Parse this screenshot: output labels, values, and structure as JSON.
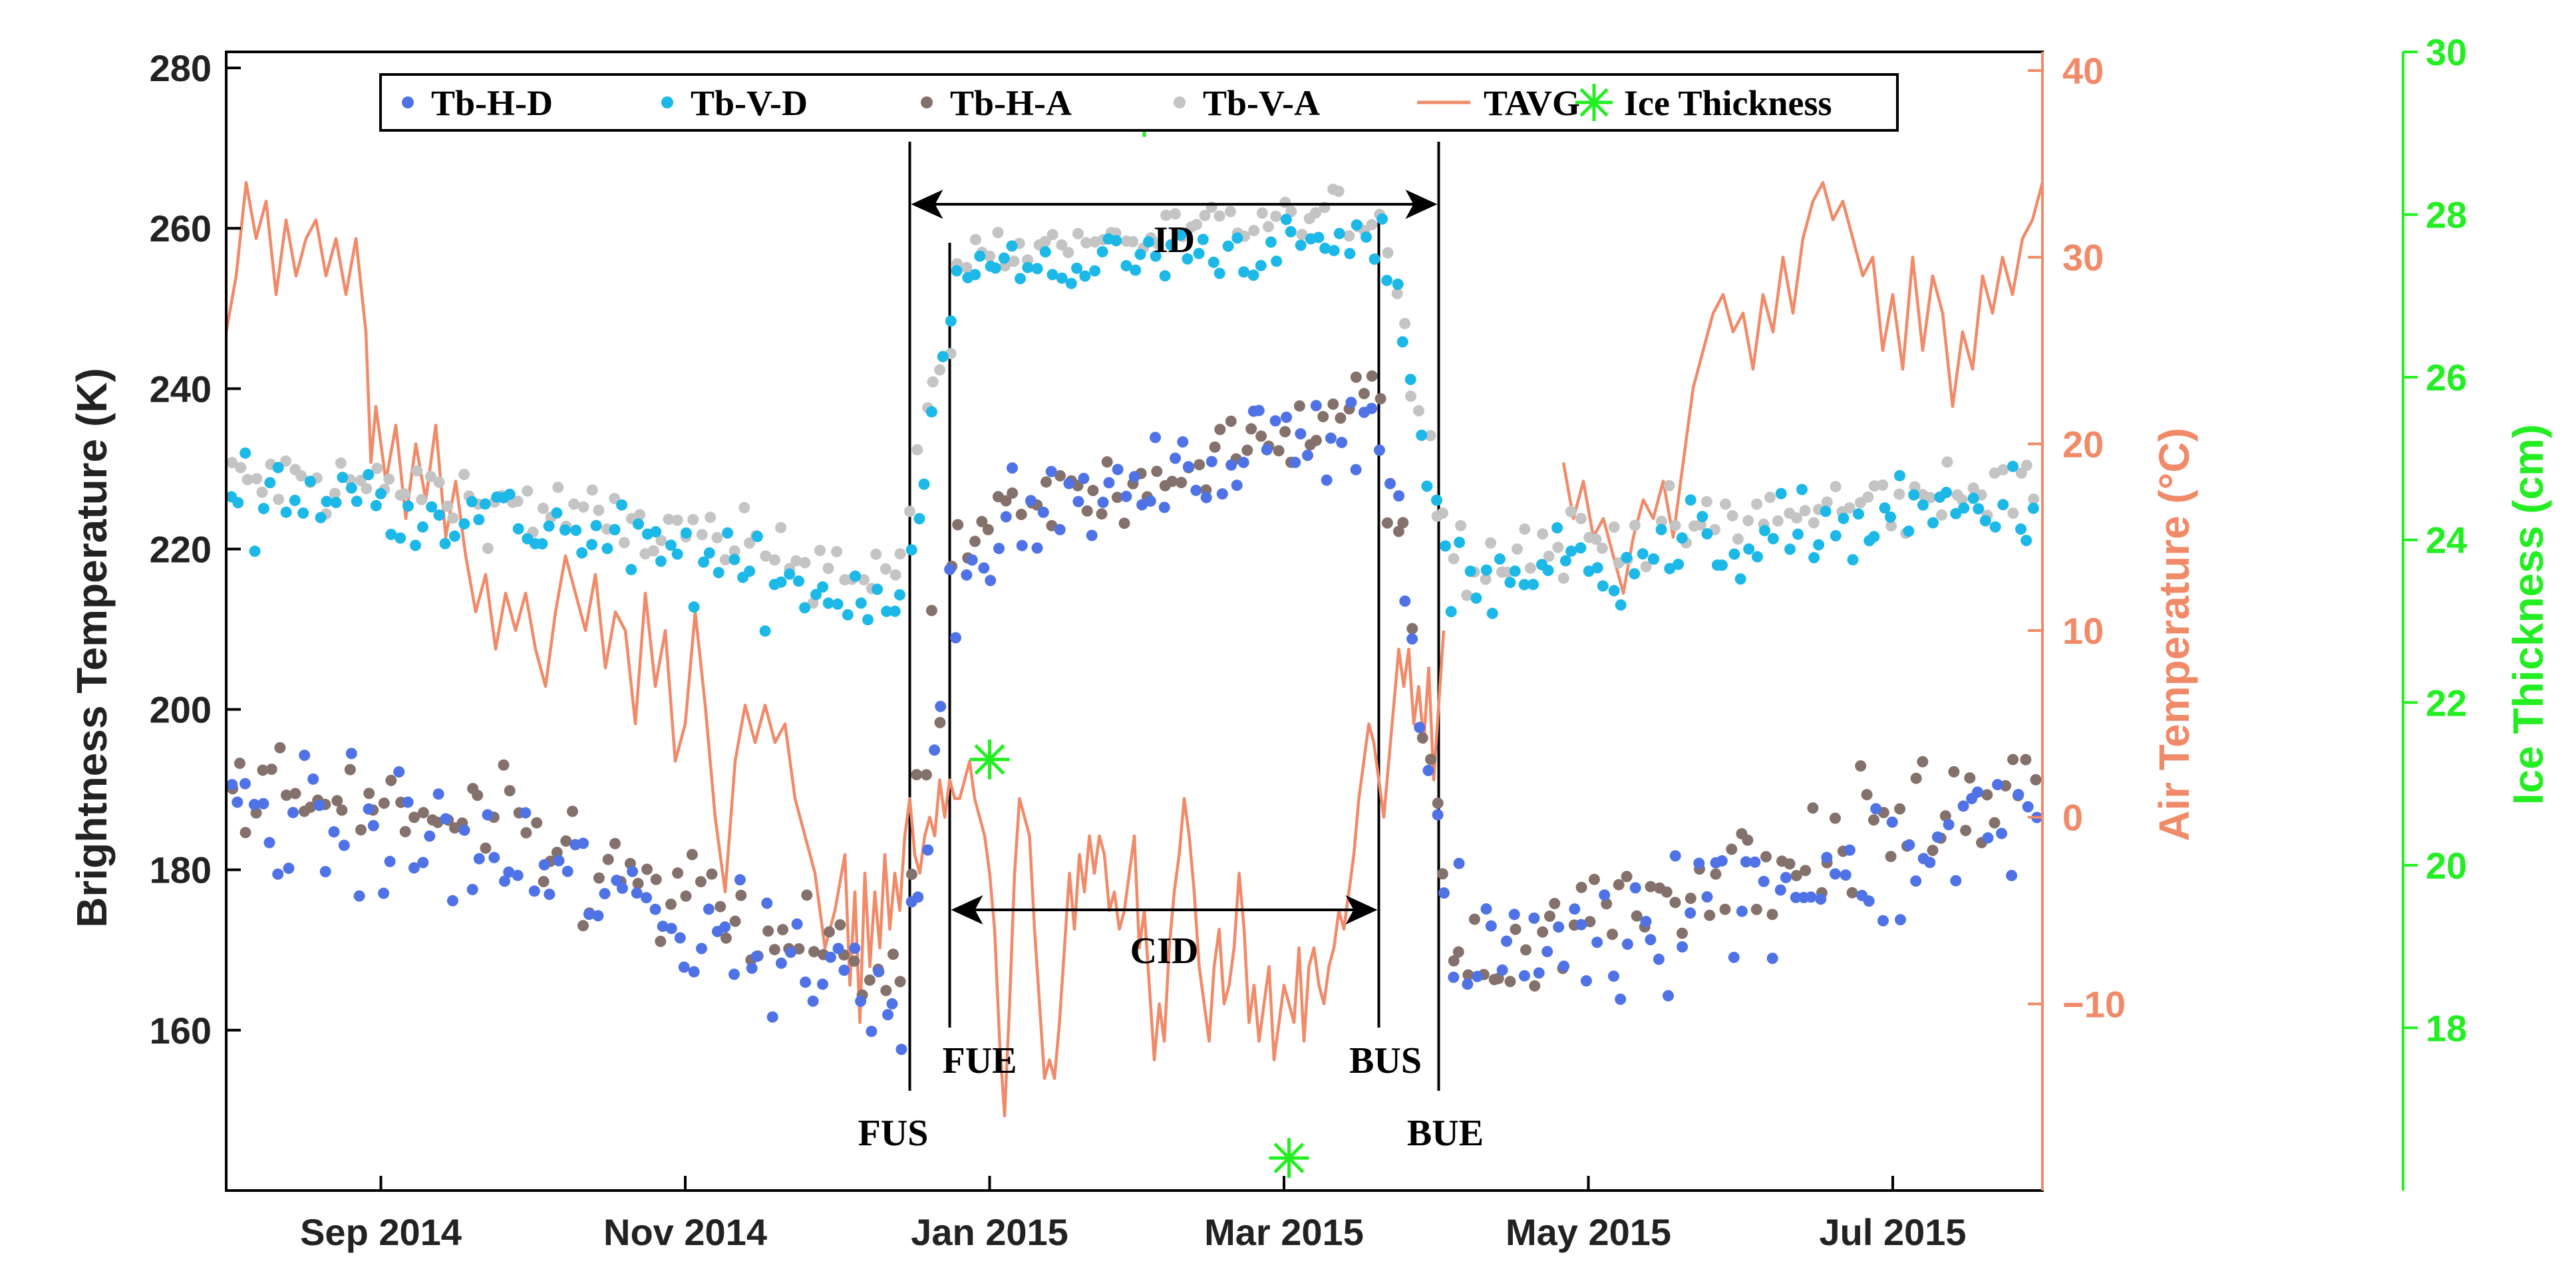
{
  "chart_data": {
    "type": "scatter",
    "colors": {
      "tb_h_d": "#4F73E6",
      "tb_v_d": "#1CB8E8",
      "tb_h_a": "#85716B",
      "tb_v_a": "#C4C4C4",
      "tavg": "#F08A68",
      "ice": "#22EE22",
      "axis": "#000000",
      "air_axis": "#F08A68",
      "ice_axis": "#22EE22"
    },
    "axes": {
      "left": {
        "label": "Brightness Temperature (K)",
        "ylim": [
          140,
          282
        ],
        "ticks": [
          160,
          180,
          200,
          220,
          240,
          260,
          280
        ]
      },
      "right_air": {
        "label": "Air Temperature (°C)",
        "ylim": [
          -20,
          41
        ],
        "ticks": [
          -10,
          0,
          10,
          20,
          30,
          40
        ],
        "tick_labels": [
          "−10",
          "0",
          "10",
          "20",
          "30",
          "40"
        ]
      },
      "right_ice": {
        "label": "Ice Thickness (cm)",
        "ylim": [
          16,
          30
        ],
        "ticks": [
          18,
          20,
          22,
          24,
          26,
          28,
          30
        ]
      },
      "x": {
        "xlim": [
          0,
          364
        ],
        "ticks": [
          31,
          92,
          153,
          212,
          273,
          334
        ],
        "tick_labels": [
          "Sep 2014",
          "Nov 2014",
          "Jan 2015",
          "Mar 2015",
          "May 2015",
          "Jul 2015"
        ]
      }
    },
    "legend": [
      "Tb-H-D",
      "Tb-V-D",
      "Tb-H-A",
      "Tb-V-A",
      "TAVG",
      "Ice Thickness"
    ],
    "legend_position": "top-center",
    "events": [
      {
        "name": "FUS",
        "day": 137
      },
      {
        "name": "FUE",
        "day": 145
      },
      {
        "name": "BUS",
        "day": 231
      },
      {
        "name": "BUE",
        "day": 243
      }
    ],
    "periods": [
      {
        "name": "ID",
        "start_day": 137,
        "end_day": 243,
        "level_k": 263
      },
      {
        "name": "CID",
        "start_day": 145,
        "end_day": 231,
        "level_k": 175
      }
    ],
    "ice_thickness": [
      {
        "day": 153,
        "cm": 21.3
      },
      {
        "day": 184,
        "cm": 29.2
      },
      {
        "day": 213,
        "cm": 16.4
      }
    ],
    "tavg_segments": [
      [
        [
          0,
          26
        ],
        [
          2,
          29
        ],
        [
          4,
          34
        ],
        [
          6,
          31
        ],
        [
          8,
          33
        ],
        [
          10,
          28
        ],
        [
          12,
          32
        ],
        [
          14,
          29
        ],
        [
          16,
          31
        ],
        [
          18,
          32
        ],
        [
          20,
          29
        ],
        [
          22,
          31
        ],
        [
          24,
          28
        ],
        [
          26,
          31
        ],
        [
          28,
          26
        ],
        [
          29,
          19
        ],
        [
          30,
          22
        ],
        [
          32,
          18
        ],
        [
          34,
          21
        ],
        [
          36,
          16
        ],
        [
          38,
          20
        ],
        [
          40,
          17
        ],
        [
          42,
          21
        ],
        [
          44,
          15
        ],
        [
          46,
          18
        ],
        [
          48,
          14
        ],
        [
          50,
          11
        ],
        [
          52,
          13
        ],
        [
          54,
          9
        ],
        [
          56,
          12
        ],
        [
          58,
          10
        ],
        [
          60,
          12
        ],
        [
          62,
          9
        ],
        [
          64,
          7
        ],
        [
          66,
          11
        ],
        [
          68,
          14
        ],
        [
          70,
          12
        ],
        [
          72,
          10
        ],
        [
          74,
          13
        ],
        [
          76,
          8
        ],
        [
          78,
          11
        ],
        [
          80,
          10
        ],
        [
          82,
          5
        ],
        [
          84,
          12
        ],
        [
          86,
          7
        ],
        [
          88,
          10
        ],
        [
          90,
          3
        ],
        [
          92,
          5
        ],
        [
          94,
          11
        ],
        [
          96,
          6
        ],
        [
          98,
          0
        ],
        [
          100,
          -4
        ],
        [
          102,
          3
        ],
        [
          104,
          6
        ],
        [
          106,
          4
        ],
        [
          108,
          6
        ],
        [
          110,
          4
        ],
        [
          112,
          5
        ],
        [
          114,
          1
        ],
        [
          116,
          -1
        ],
        [
          118,
          -3
        ],
        [
          120,
          -7
        ],
        [
          122,
          -5
        ],
        [
          124,
          -2
        ],
        [
          125,
          -9
        ],
        [
          126,
          -4
        ],
        [
          127,
          -11
        ],
        [
          128,
          -3
        ],
        [
          129,
          -8
        ],
        [
          130,
          -4
        ],
        [
          131,
          -7
        ],
        [
          132,
          -2
        ],
        [
          133,
          -6
        ],
        [
          134,
          -3
        ],
        [
          135,
          -5
        ],
        [
          136,
          -1
        ],
        [
          137,
          1
        ],
        [
          138,
          -2
        ],
        [
          139,
          -3
        ],
        [
          140,
          -1
        ],
        [
          141,
          0
        ],
        [
          142,
          -1
        ],
        [
          143,
          2
        ],
        [
          144,
          0
        ],
        [
          145,
          2
        ],
        [
          146,
          1
        ],
        [
          147,
          1
        ],
        [
          148,
          2
        ],
        [
          149,
          3
        ],
        [
          150,
          1
        ],
        [
          151,
          0
        ],
        [
          152,
          -1
        ],
        [
          153,
          -3
        ],
        [
          154,
          -6
        ],
        [
          155,
          -12
        ],
        [
          156,
          -16
        ],
        [
          157,
          -10
        ],
        [
          158,
          -3
        ],
        [
          159,
          1
        ],
        [
          160,
          0
        ],
        [
          161,
          -1
        ],
        [
          162,
          -6
        ],
        [
          163,
          -10
        ],
        [
          164,
          -14
        ],
        [
          165,
          -13
        ],
        [
          166,
          -14
        ],
        [
          167,
          -11
        ],
        [
          168,
          -7
        ],
        [
          169,
          -3
        ],
        [
          170,
          -6
        ],
        [
          171,
          -2
        ],
        [
          172,
          -4
        ],
        [
          173,
          -1
        ],
        [
          174,
          -3
        ],
        [
          175,
          -1
        ],
        [
          176,
          -2
        ],
        [
          177,
          -5
        ],
        [
          178,
          -4
        ],
        [
          179,
          -6
        ],
        [
          180,
          -5
        ],
        [
          181,
          -3
        ],
        [
          182,
          -1
        ],
        [
          183,
          -7
        ],
        [
          184,
          -5
        ],
        [
          185,
          -9
        ],
        [
          186,
          -13
        ],
        [
          187,
          -10
        ],
        [
          188,
          -12
        ],
        [
          189,
          -7
        ],
        [
          190,
          -4
        ],
        [
          191,
          -2
        ],
        [
          192,
          1
        ],
        [
          193,
          -1
        ],
        [
          194,
          -4
        ],
        [
          195,
          -8
        ],
        [
          196,
          -10
        ],
        [
          197,
          -12
        ],
        [
          198,
          -8
        ],
        [
          199,
          -6
        ],
        [
          200,
          -10
        ],
        [
          201,
          -9
        ],
        [
          202,
          -7
        ],
        [
          203,
          -3
        ],
        [
          204,
          -6
        ],
        [
          205,
          -11
        ],
        [
          206,
          -9
        ],
        [
          207,
          -12
        ],
        [
          208,
          -10
        ],
        [
          209,
          -8
        ],
        [
          210,
          -13
        ],
        [
          211,
          -11
        ],
        [
          212,
          -9
        ],
        [
          213,
          -10
        ],
        [
          214,
          -11
        ],
        [
          215,
          -7
        ],
        [
          216,
          -12
        ],
        [
          217,
          -8
        ],
        [
          218,
          -7
        ],
        [
          219,
          -9
        ],
        [
          220,
          -10
        ],
        [
          221,
          -8
        ],
        [
          222,
          -7
        ],
        [
          223,
          -5
        ],
        [
          224,
          -6
        ],
        [
          225,
          -4
        ],
        [
          226,
          -2
        ],
        [
          227,
          1
        ],
        [
          228,
          3
        ],
        [
          229,
          5
        ],
        [
          230,
          4
        ],
        [
          231,
          2
        ],
        [
          232,
          0
        ],
        [
          233,
          3
        ],
        [
          234,
          6
        ],
        [
          235,
          9
        ],
        [
          236,
          7
        ],
        [
          237,
          9
        ],
        [
          238,
          5
        ],
        [
          239,
          7
        ],
        [
          240,
          4
        ],
        [
          241,
          8
        ],
        [
          242,
          2
        ],
        [
          243,
          6
        ],
        [
          244,
          10
        ]
      ],
      [
        [
          268,
          19
        ],
        [
          270,
          16
        ],
        [
          272,
          18
        ],
        [
          274,
          15
        ],
        [
          276,
          16
        ],
        [
          278,
          14
        ],
        [
          280,
          12
        ],
        [
          282,
          15
        ],
        [
          284,
          17
        ],
        [
          286,
          16
        ],
        [
          288,
          18
        ],
        [
          290,
          15
        ],
        [
          292,
          19
        ],
        [
          294,
          23
        ],
        [
          296,
          25
        ],
        [
          298,
          27
        ],
        [
          300,
          28
        ],
        [
          302,
          26
        ],
        [
          304,
          27
        ],
        [
          306,
          24
        ],
        [
          308,
          28
        ],
        [
          310,
          26
        ],
        [
          312,
          30
        ],
        [
          314,
          27
        ],
        [
          316,
          31
        ],
        [
          318,
          33
        ],
        [
          320,
          34
        ],
        [
          322,
          32
        ],
        [
          324,
          33
        ],
        [
          326,
          31
        ],
        [
          328,
          29
        ],
        [
          330,
          30
        ],
        [
          332,
          25
        ],
        [
          334,
          28
        ],
        [
          336,
          24
        ],
        [
          338,
          30
        ],
        [
          340,
          25
        ],
        [
          342,
          29
        ],
        [
          344,
          27
        ],
        [
          346,
          22
        ],
        [
          348,
          26
        ],
        [
          350,
          24
        ],
        [
          352,
          29
        ],
        [
          354,
          27
        ],
        [
          356,
          30
        ],
        [
          358,
          28
        ],
        [
          360,
          31
        ],
        [
          362,
          32
        ],
        [
          364,
          34
        ]
      ]
    ]
  }
}
